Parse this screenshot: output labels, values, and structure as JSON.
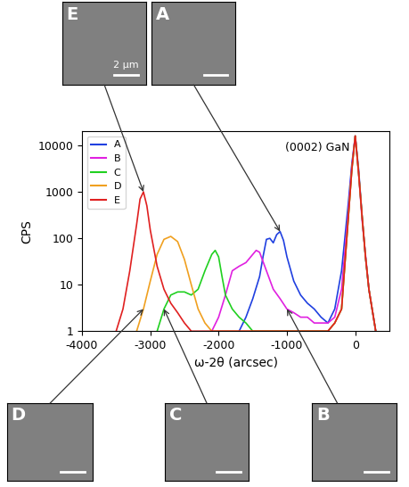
{
  "chart_data": {
    "type": "line",
    "x_label": "ω-2θ (arcsec)",
    "y_label": "CPS",
    "annotations": [
      "(0002) GaN"
    ],
    "log": "y",
    "legend": "upper left",
    "xlim": [
      -4000,
      500
    ],
    "xticks": [
      -4000,
      -3000,
      -2000,
      -1000,
      0
    ],
    "ylim": [
      1,
      20000
    ],
    "yticks": [
      1,
      10,
      100,
      1000,
      10000
    ],
    "series": [
      {
        "name": "A",
        "color": "#2040e0",
        "x": [
          -1700,
          -1600,
          -1500,
          -1400,
          -1350,
          -1300,
          -1250,
          -1200,
          -1150,
          -1100,
          -1050,
          -1000,
          -900,
          -800,
          -700,
          -600,
          -500,
          -400,
          -300,
          -200,
          -100,
          -50,
          0,
          50,
          100,
          150,
          200,
          300
        ],
        "values": [
          1,
          2,
          5,
          15,
          40,
          95,
          100,
          80,
          120,
          140,
          90,
          40,
          12,
          6,
          4,
          3,
          2,
          1.5,
          3,
          20,
          600,
          4000,
          16000,
          3000,
          300,
          40,
          8,
          1
        ]
      },
      {
        "name": "B",
        "color": "#e020e0",
        "x": [
          -2100,
          -2000,
          -1900,
          -1800,
          -1700,
          -1600,
          -1500,
          -1450,
          -1400,
          -1300,
          -1200,
          -1100,
          -1000,
          -900,
          -800,
          -700,
          -600,
          -500,
          -400,
          -300,
          -200,
          -100,
          -50,
          0,
          50,
          100,
          200,
          300
        ],
        "values": [
          1,
          2,
          6,
          20,
          25,
          30,
          45,
          55,
          50,
          20,
          8,
          5,
          3,
          2.5,
          2,
          2,
          1.5,
          1.5,
          1.5,
          2,
          8,
          400,
          3500,
          16000,
          2500,
          250,
          8,
          1
        ]
      },
      {
        "name": "C",
        "color": "#20d020",
        "x": [
          -2900,
          -2800,
          -2700,
          -2600,
          -2500,
          -2400,
          -2300,
          -2200,
          -2100,
          -2050,
          -2000,
          -1950,
          -1900,
          -1800,
          -1700,
          -1600,
          -1500,
          -1400,
          -400,
          -300,
          -200,
          -100,
          -50,
          0,
          50,
          100,
          150,
          200,
          300
        ],
        "values": [
          1,
          3,
          6,
          7,
          7,
          6,
          8,
          20,
          45,
          55,
          40,
          15,
          6,
          3,
          2,
          1.5,
          1,
          1,
          1,
          1.5,
          3,
          300,
          3000,
          16000,
          2500,
          300,
          40,
          8,
          1
        ]
      },
      {
        "name": "D",
        "color": "#f0a020",
        "x": [
          -3200,
          -3100,
          -3000,
          -2900,
          -2800,
          -2700,
          -2600,
          -2500,
          -2400,
          -2300,
          -2200,
          -2100,
          -400,
          -300,
          -200,
          -100,
          -50,
          0,
          50,
          100,
          150,
          200,
          300
        ],
        "values": [
          1,
          3,
          12,
          45,
          95,
          110,
          85,
          35,
          10,
          3,
          1.5,
          1,
          1,
          1.5,
          3,
          300,
          3000,
          16000,
          2500,
          300,
          40,
          8,
          1
        ]
      },
      {
        "name": "E",
        "color": "#e02020",
        "x": [
          -3500,
          -3400,
          -3300,
          -3200,
          -3150,
          -3100,
          -3050,
          -3000,
          -2900,
          -2800,
          -2700,
          -2600,
          -2500,
          -2400,
          -400,
          -300,
          -200,
          -100,
          -50,
          0,
          50,
          100,
          150,
          200,
          300
        ],
        "values": [
          1,
          3,
          20,
          200,
          700,
          1000,
          500,
          150,
          25,
          8,
          4,
          2.5,
          1.5,
          1,
          1,
          1.5,
          3,
          300,
          3000,
          16000,
          2500,
          300,
          40,
          8,
          1
        ]
      }
    ],
    "insets": [
      {
        "label": "E",
        "scale_label": "2 μm"
      },
      {
        "label": "A"
      },
      {
        "label": "D"
      },
      {
        "label": "C"
      },
      {
        "label": "B"
      }
    ]
  }
}
